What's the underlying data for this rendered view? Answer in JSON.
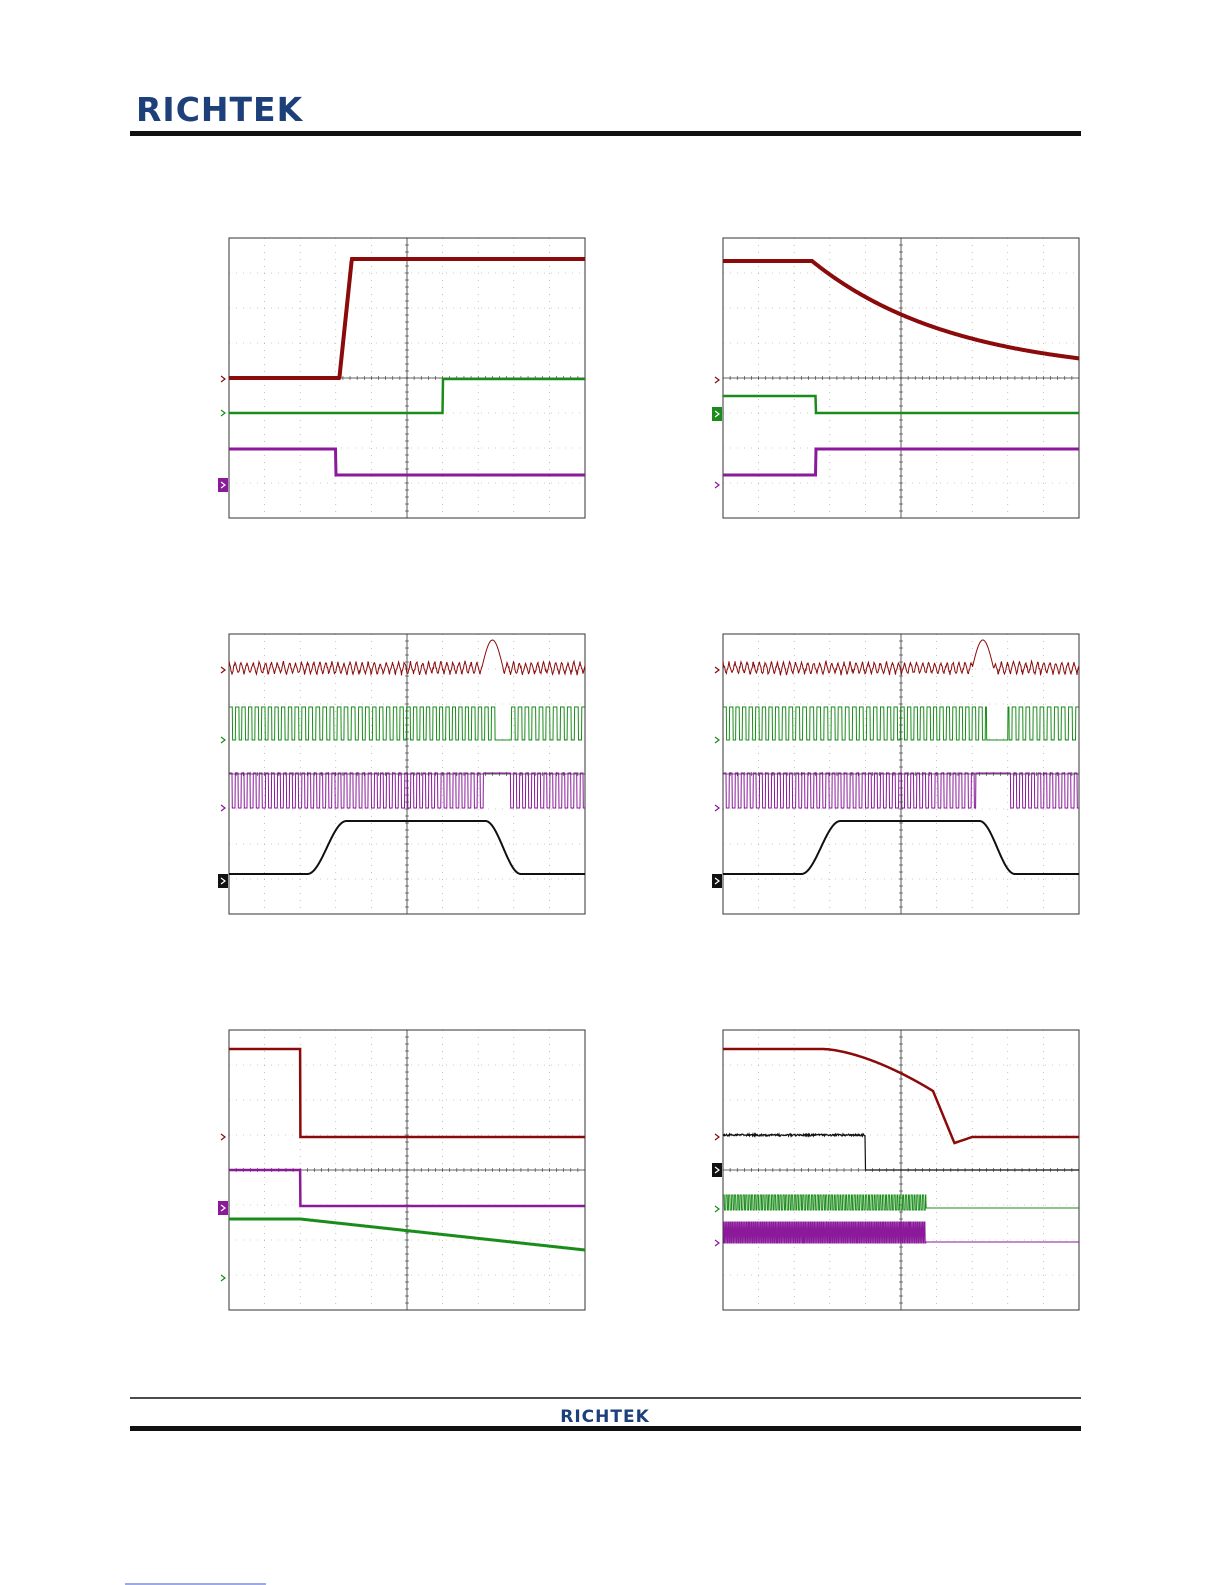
{
  "header": {
    "logo": "RICHTEK"
  },
  "footer": {
    "logo": "RICHTEK"
  }
}
